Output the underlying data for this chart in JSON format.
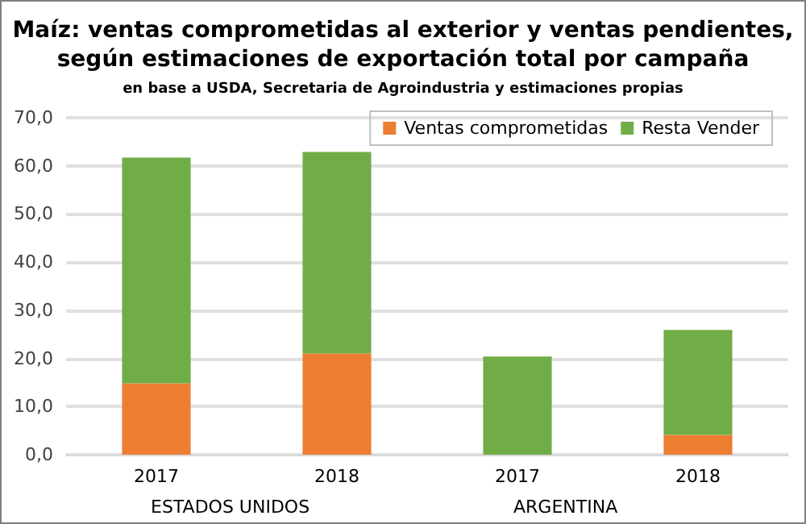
{
  "chart_data": {
    "type": "bar",
    "title": "Maíz: ventas comprometidas al exterior y ventas pendientes,\nsegún estimaciones de exportación total por campaña",
    "subtitle": "en base a USDA, Secretaria de Agroindustria y estimaciones propias",
    "categories": [
      "2017",
      "2018",
      "2017",
      "2018"
    ],
    "series": [
      {
        "name": "Ventas comprometidas",
        "color": "#ed7d31",
        "values": [
          14.8,
          21.0,
          0,
          4.1
        ]
      },
      {
        "name": "Resta Vender",
        "color": "#70ad47",
        "values": [
          46.9,
          41.9,
          20.4,
          21.8
        ]
      }
    ],
    "stacked": true,
    "ylim": [
      0,
      70
    ],
    "yticks": [
      {
        "value": 0,
        "label": "0,0"
      },
      {
        "value": 10,
        "label": "10,0"
      },
      {
        "value": 20,
        "label": "20,0"
      },
      {
        "value": 30,
        "label": "30,0"
      },
      {
        "value": 40,
        "label": "40,0"
      },
      {
        "value": 50,
        "label": "50,0"
      },
      {
        "value": 60,
        "label": "60,0"
      },
      {
        "value": 70,
        "label": "70,0"
      }
    ],
    "grid": "y",
    "legend": "top right",
    "annotations": [
      "ESTADOS UNIDOS",
      "ARGENTINA"
    ]
  }
}
